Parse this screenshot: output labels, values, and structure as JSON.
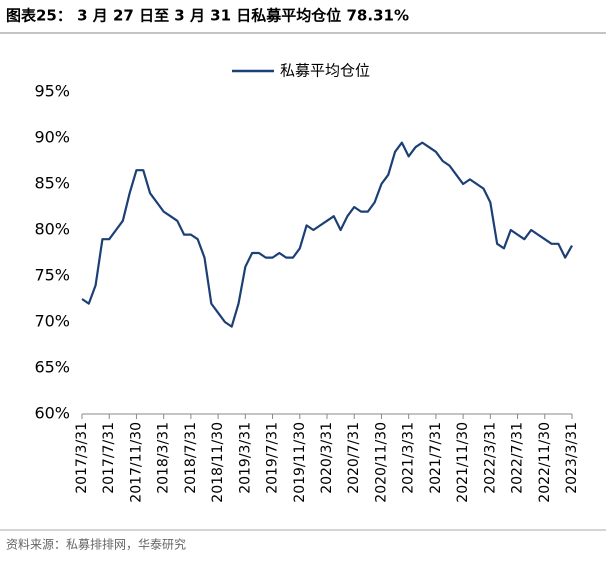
{
  "chart_data": {
    "type": "line",
    "title": "图表25： 3 月 27 日至 3 月 31 日私募平均仓位 78.31%",
    "source": "资料来源：私募排排网，华泰研究",
    "categories": [
      "2017/3/31",
      null,
      null,
      null,
      "2017/7/31",
      null,
      null,
      null,
      "2017/11/30",
      null,
      null,
      null,
      "2018/3/31",
      null,
      null,
      null,
      "2018/7/31",
      null,
      null,
      null,
      "2018/11/30",
      null,
      null,
      null,
      "2019/3/31",
      null,
      null,
      null,
      "2019/7/31",
      null,
      null,
      null,
      "2019/11/30",
      null,
      null,
      null,
      "2020/3/31",
      null,
      null,
      null,
      "2020/7/31",
      null,
      null,
      null,
      "2020/11/30",
      null,
      null,
      null,
      "2021/3/31",
      null,
      null,
      null,
      "2021/7/31",
      null,
      null,
      null,
      "2021/11/30",
      null,
      null,
      null,
      "2022/3/31",
      null,
      null,
      null,
      "2022/7/31",
      null,
      null,
      null,
      "2022/11/30",
      null,
      null,
      null,
      "2023/3/31"
    ],
    "series": [
      {
        "name": "私募平均仓位",
        "color": "#1c3f75",
        "values": [
          72.5,
          72,
          74,
          79,
          79,
          80,
          81,
          84,
          86.5,
          86.5,
          84,
          83,
          82,
          81.5,
          81,
          79.5,
          79.5,
          79,
          77,
          72,
          71,
          70,
          69.5,
          72,
          76,
          77.5,
          77.5,
          77,
          77,
          77.5,
          77,
          77,
          78,
          80.5,
          80,
          80.5,
          81,
          81.5,
          80,
          81.5,
          82.5,
          82,
          82,
          83,
          85,
          86,
          88.5,
          89.5,
          88,
          89,
          89.5,
          89,
          88.5,
          87.5,
          87,
          86,
          85,
          85.5,
          85,
          84.5,
          83,
          78.5,
          78,
          80,
          79.5,
          79,
          80,
          79.5,
          79,
          78.5,
          78.5,
          77,
          78.31
        ]
      }
    ],
    "ylim": [
      60,
      95
    ],
    "yticks": [
      {
        "value": 60,
        "label": "60%"
      },
      {
        "value": 65,
        "label": "65%"
      },
      {
        "value": 70,
        "label": "70%"
      },
      {
        "value": 75,
        "label": "75%"
      },
      {
        "value": 80,
        "label": "80%"
      },
      {
        "value": 85,
        "label": "85%"
      },
      {
        "value": 90,
        "label": "90%"
      },
      {
        "value": 95,
        "label": "95%"
      }
    ],
    "grid": false,
    "legend": "top"
  }
}
